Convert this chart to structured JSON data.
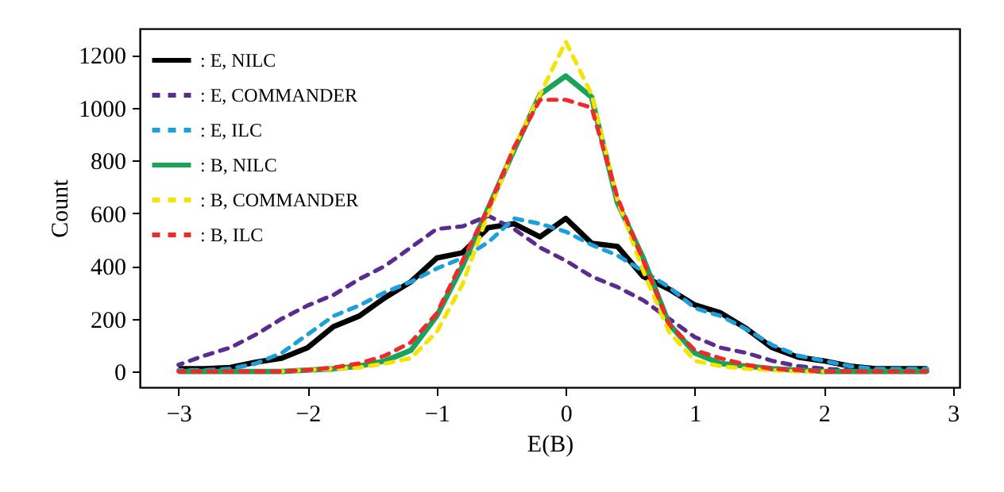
{
  "chart_data": {
    "type": "line",
    "xlabel": "E(B)",
    "ylabel": "Count",
    "x": [
      -3,
      -2.8,
      -2.6,
      -2.4,
      -2.2,
      -2,
      -1.8,
      -1.6,
      -1.4,
      -1.2,
      -1,
      -0.8,
      -0.6,
      -0.4,
      -0.2,
      0,
      0.2,
      0.4,
      0.6,
      0.8,
      1,
      1.2,
      1.4,
      1.6,
      1.8,
      2,
      2.2,
      2.4,
      2.6,
      2.8
    ],
    "xlim": [
      -3.3,
      3.05
    ],
    "xticks": [
      -3,
      -2,
      -1,
      0,
      1,
      2,
      3
    ],
    "ylim": [
      -60,
      1300
    ],
    "yticks": [
      0,
      200,
      400,
      600,
      800,
      1000,
      1200
    ],
    "grid": false,
    "legend": "top left",
    "marker": "none",
    "series": [
      {
        "name": ": E, NILC",
        "color": "#000000",
        "line_style": "solid",
        "values": [
          10,
          10,
          15,
          35,
          50,
          90,
          170,
          210,
          280,
          340,
          430,
          450,
          545,
          560,
          510,
          580,
          486,
          474,
          360,
          312,
          252,
          222,
          162,
          90,
          54,
          40,
          20,
          10,
          10,
          10
        ]
      },
      {
        "name": ": E, COMMANDER",
        "color": "#5b2c8f",
        "line_style": "dashed",
        "values": [
          25,
          60,
          90,
          140,
          200,
          250,
          290,
          350,
          400,
          470,
          540,
          550,
          590,
          540,
          470,
          420,
          360,
          320,
          270,
          200,
          130,
          90,
          70,
          40,
          20,
          10,
          5,
          null,
          null,
          null
        ]
      },
      {
        "name": ": E, ILC",
        "color": "#1ca0dc",
        "line_style": "dashed",
        "values": [
          5,
          5,
          10,
          30,
          70,
          140,
          210,
          250,
          300,
          340,
          390,
          430,
          490,
          580,
          560,
          530,
          480,
          440,
          380,
          320,
          240,
          210,
          160,
          100,
          60,
          40,
          20,
          10,
          10,
          10
        ]
      },
      {
        "name": ": B, NILC",
        "color": "#1aa35a",
        "line_style": "solid",
        "values": [
          0,
          0,
          0,
          0,
          0,
          5,
          10,
          20,
          40,
          80,
          210,
          400,
          620,
          840,
          1050,
          1120,
          1040,
          640,
          430,
          180,
          70,
          30,
          20,
          10,
          5,
          0,
          0,
          0,
          0,
          0
        ]
      },
      {
        "name": ": B, COMMANDER",
        "color": "#f5e400",
        "line_style": "dashed",
        "values": [
          null,
          null,
          null,
          null,
          0,
          5,
          10,
          15,
          30,
          50,
          150,
          330,
          600,
          850,
          1050,
          1250,
          1050,
          650,
          380,
          150,
          40,
          20,
          10,
          5,
          0,
          0,
          null,
          null,
          null,
          null
        ]
      },
      {
        "name": ": B, ILC",
        "color": "#ee2a2a",
        "line_style": "dashed",
        "values": [
          0,
          0,
          0,
          0,
          0,
          5,
          15,
          30,
          60,
          110,
          220,
          420,
          620,
          850,
          1030,
          1030,
          1000,
          660,
          420,
          180,
          80,
          50,
          25,
          10,
          5,
          0,
          0,
          0,
          0,
          0
        ]
      }
    ]
  }
}
